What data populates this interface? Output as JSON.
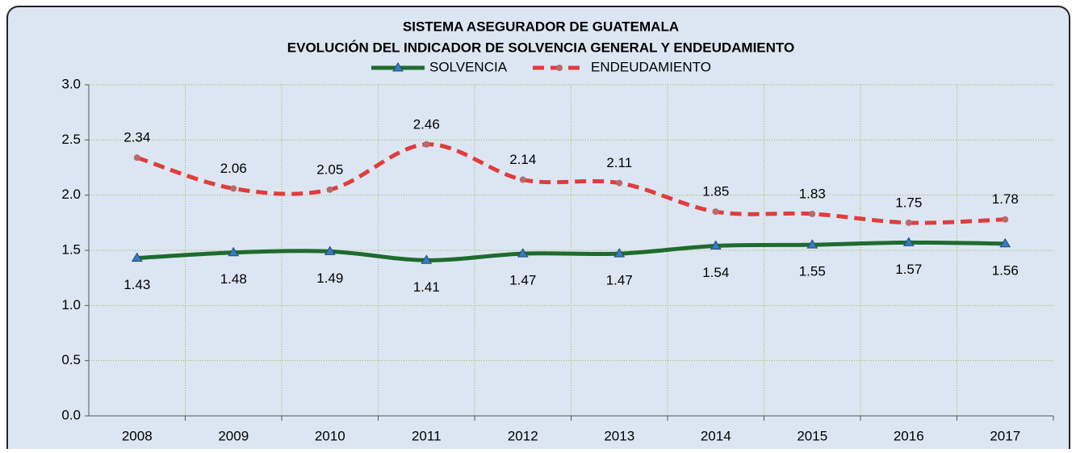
{
  "chart_data": {
    "type": "line",
    "title": "SISTEMA  ASEGURADOR  DE GUATEMALA",
    "subtitle": "EVOLUCIÓN DEL INDICADOR DE SOLVENCIA GENERAL Y ENDEUDAMIENTO",
    "categories": [
      "2008",
      "2009",
      "2010",
      "2011",
      "2012",
      "2013",
      "2014",
      "2015",
      "2016",
      "2017"
    ],
    "series": [
      {
        "name": "SOLVENCIA",
        "color": "#1e6b2e",
        "marker_color": "#3a7bbf",
        "dashed": false,
        "label_position": "below",
        "values": [
          1.43,
          1.48,
          1.49,
          1.41,
          1.47,
          1.47,
          1.54,
          1.55,
          1.57,
          1.56
        ]
      },
      {
        "name": "ENDEUDAMIENTO",
        "color": "#e03c3c",
        "marker_color": "#b86a6a",
        "dashed": true,
        "label_position": "above",
        "values": [
          2.34,
          2.06,
          2.05,
          2.46,
          2.14,
          2.11,
          1.85,
          1.83,
          1.75,
          1.78
        ]
      }
    ],
    "ylim": [
      0,
      3
    ],
    "yticks": [
      {
        "value": 0,
        "label": "0.0"
      },
      {
        "value": 0.5,
        "label": "0.5"
      },
      {
        "value": 1,
        "label": "1.0"
      },
      {
        "value": 1.5,
        "label": "1.5"
      },
      {
        "value": 2,
        "label": "2.0"
      },
      {
        "value": 2.5,
        "label": "2.5"
      },
      {
        "value": 3,
        "label": "3.0"
      }
    ],
    "grid": true,
    "legend": "top"
  }
}
